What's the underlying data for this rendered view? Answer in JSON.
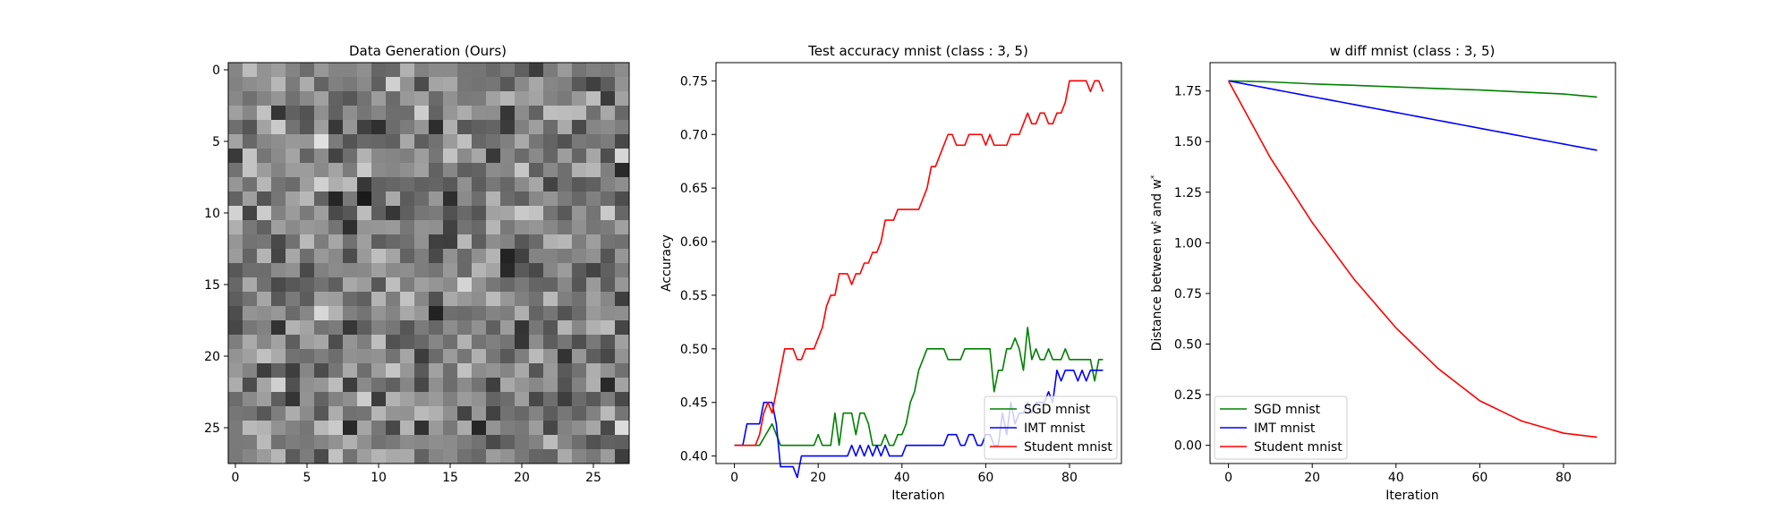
{
  "chart_data": [
    {
      "type": "heatmap",
      "title": "Data Generation (Ours)",
      "colormap": "gray",
      "rows": 28,
      "cols": 28,
      "xlim": [
        -0.5,
        27.5
      ],
      "ylim": [
        27.5,
        -0.5
      ],
      "xticks": [
        0,
        5,
        10,
        15,
        20,
        25
      ],
      "yticks": [
        0,
        5,
        10,
        15,
        20,
        25
      ],
      "grid": false
    },
    {
      "type": "line",
      "title": "Test accuracy mnist (class : 3, 5)",
      "xlabel": "Iteration",
      "ylabel": "Accuracy",
      "xlim": [
        -4.4,
        92.4
      ],
      "ylim": [
        0.393,
        0.767
      ],
      "xticks": [
        0,
        20,
        40,
        60,
        80
      ],
      "yticks": [
        0.4,
        0.45,
        0.5,
        0.55,
        0.6,
        0.65,
        0.7,
        0.75
      ],
      "ytick_decimals": 2,
      "legend": "lower-right",
      "grid": false,
      "series": [
        {
          "name": "SGD mnist",
          "color": "#008000",
          "x": [
            0,
            6,
            9,
            10,
            11,
            12,
            15,
            19,
            20,
            21,
            22,
            23,
            24,
            25,
            26,
            27,
            28,
            29,
            30,
            31,
            32,
            33,
            34,
            35,
            36,
            37,
            38,
            39,
            40,
            41,
            42,
            43,
            44,
            45,
            46,
            47,
            50,
            51,
            54,
            55,
            60,
            61,
            62,
            63,
            64,
            65,
            66,
            67,
            68,
            69,
            70,
            71,
            72,
            73,
            74,
            75,
            76,
            77,
            78,
            79,
            80,
            85,
            86,
            87,
            88
          ],
          "y": [
            0.41,
            0.41,
            0.43,
            0.42,
            0.41,
            0.41,
            0.41,
            0.41,
            0.42,
            0.41,
            0.41,
            0.41,
            0.44,
            0.41,
            0.44,
            0.44,
            0.44,
            0.42,
            0.44,
            0.44,
            0.43,
            0.41,
            0.41,
            0.41,
            0.42,
            0.41,
            0.41,
            0.42,
            0.42,
            0.43,
            0.45,
            0.46,
            0.48,
            0.49,
            0.5,
            0.5,
            0.5,
            0.49,
            0.49,
            0.5,
            0.5,
            0.5,
            0.46,
            0.48,
            0.48,
            0.5,
            0.5,
            0.51,
            0.5,
            0.48,
            0.52,
            0.49,
            0.5,
            0.49,
            0.49,
            0.5,
            0.49,
            0.49,
            0.49,
            0.5,
            0.49,
            0.49,
            0.47,
            0.49,
            0.49
          ]
        },
        {
          "name": "IMT mnist",
          "color": "#0000ff",
          "x": [
            0,
            2,
            3,
            5,
            6,
            7,
            8,
            9,
            10,
            11,
            12,
            14,
            15,
            16,
            20,
            27,
            28,
            29,
            30,
            31,
            32,
            33,
            34,
            35,
            36,
            37,
            38,
            40,
            41,
            50,
            51,
            53,
            54,
            55,
            56,
            57,
            58,
            59,
            60,
            61,
            62,
            63,
            64,
            65,
            66,
            67,
            68,
            69,
            70,
            71,
            72,
            73,
            74,
            75,
            76,
            77,
            78,
            79,
            80,
            81,
            82,
            83,
            84,
            85,
            86,
            87,
            88
          ],
          "y": [
            0.41,
            0.41,
            0.43,
            0.43,
            0.43,
            0.45,
            0.45,
            0.45,
            0.43,
            0.39,
            0.39,
            0.39,
            0.38,
            0.4,
            0.4,
            0.4,
            0.41,
            0.4,
            0.41,
            0.4,
            0.41,
            0.4,
            0.41,
            0.4,
            0.41,
            0.4,
            0.4,
            0.4,
            0.41,
            0.41,
            0.42,
            0.42,
            0.41,
            0.41,
            0.42,
            0.42,
            0.41,
            0.41,
            0.42,
            0.42,
            0.41,
            0.41,
            0.44,
            0.42,
            0.45,
            0.43,
            0.44,
            0.44,
            0.45,
            0.44,
            0.45,
            0.45,
            0.45,
            0.46,
            0.45,
            0.48,
            0.47,
            0.48,
            0.48,
            0.48,
            0.47,
            0.48,
            0.47,
            0.48,
            0.48,
            0.48,
            0.48
          ]
        },
        {
          "name": "Student mnist",
          "color": "#ff0000",
          "x": [
            0,
            5,
            6,
            7,
            8,
            9,
            10,
            11,
            12,
            13,
            14,
            15,
            16,
            17,
            18,
            19,
            20,
            21,
            22,
            23,
            24,
            25,
            26,
            27,
            28,
            29,
            30,
            31,
            32,
            33,
            34,
            35,
            36,
            37,
            38,
            39,
            40,
            41,
            42,
            43,
            44,
            45,
            46,
            47,
            48,
            49,
            50,
            51,
            52,
            53,
            54,
            55,
            56,
            57,
            58,
            59,
            60,
            61,
            62,
            63,
            64,
            65,
            66,
            67,
            68,
            69,
            70,
            71,
            72,
            73,
            74,
            75,
            76,
            77,
            78,
            79,
            80,
            81,
            82,
            83,
            84,
            85,
            86,
            87,
            88
          ],
          "y": [
            0.41,
            0.41,
            0.42,
            0.44,
            0.45,
            0.44,
            0.46,
            0.48,
            0.5,
            0.5,
            0.5,
            0.49,
            0.49,
            0.5,
            0.5,
            0.5,
            0.51,
            0.52,
            0.54,
            0.55,
            0.55,
            0.57,
            0.57,
            0.57,
            0.56,
            0.57,
            0.57,
            0.58,
            0.58,
            0.59,
            0.59,
            0.6,
            0.62,
            0.62,
            0.62,
            0.63,
            0.63,
            0.63,
            0.63,
            0.63,
            0.63,
            0.64,
            0.65,
            0.67,
            0.67,
            0.68,
            0.69,
            0.7,
            0.7,
            0.69,
            0.69,
            0.69,
            0.7,
            0.7,
            0.7,
            0.7,
            0.69,
            0.7,
            0.69,
            0.69,
            0.69,
            0.69,
            0.7,
            0.7,
            0.7,
            0.71,
            0.72,
            0.71,
            0.71,
            0.72,
            0.72,
            0.71,
            0.71,
            0.72,
            0.72,
            0.73,
            0.75,
            0.75,
            0.75,
            0.75,
            0.75,
            0.74,
            0.75,
            0.75,
            0.74
          ]
        }
      ]
    },
    {
      "type": "line",
      "title": "w diff mnist (class : 3, 5)",
      "xlabel": "Iteration",
      "ylabel": "Distance between w^t and w^*",
      "xlim": [
        -4.4,
        92.4
      ],
      "ylim": [
        -0.09,
        1.89
      ],
      "xticks": [
        0,
        20,
        40,
        60,
        80
      ],
      "yticks": [
        0.0,
        0.25,
        0.5,
        0.75,
        1.0,
        1.25,
        1.5,
        1.75
      ],
      "ytick_decimals": 2,
      "legend": "lower-left",
      "grid": false,
      "series": [
        {
          "name": "SGD mnist",
          "color": "#008000",
          "x": [
            0,
            10,
            20,
            30,
            40,
            50,
            60,
            70,
            80,
            88
          ],
          "y": [
            1.8,
            1.795,
            1.785,
            1.778,
            1.77,
            1.762,
            1.755,
            1.745,
            1.735,
            1.72
          ]
        },
        {
          "name": "IMT mnist",
          "color": "#0000ff",
          "x": [
            0,
            10,
            20,
            30,
            40,
            50,
            60,
            70,
            80,
            88
          ],
          "y": [
            1.8,
            1.761,
            1.722,
            1.683,
            1.644,
            1.605,
            1.566,
            1.527,
            1.488,
            1.457
          ]
        },
        {
          "name": "Student mnist",
          "color": "#ff0000",
          "x": [
            0,
            10,
            20,
            30,
            40,
            50,
            60,
            70,
            80,
            88
          ],
          "y": [
            1.8,
            1.42,
            1.1,
            0.82,
            0.58,
            0.38,
            0.22,
            0.12,
            0.06,
            0.04
          ]
        }
      ]
    }
  ]
}
